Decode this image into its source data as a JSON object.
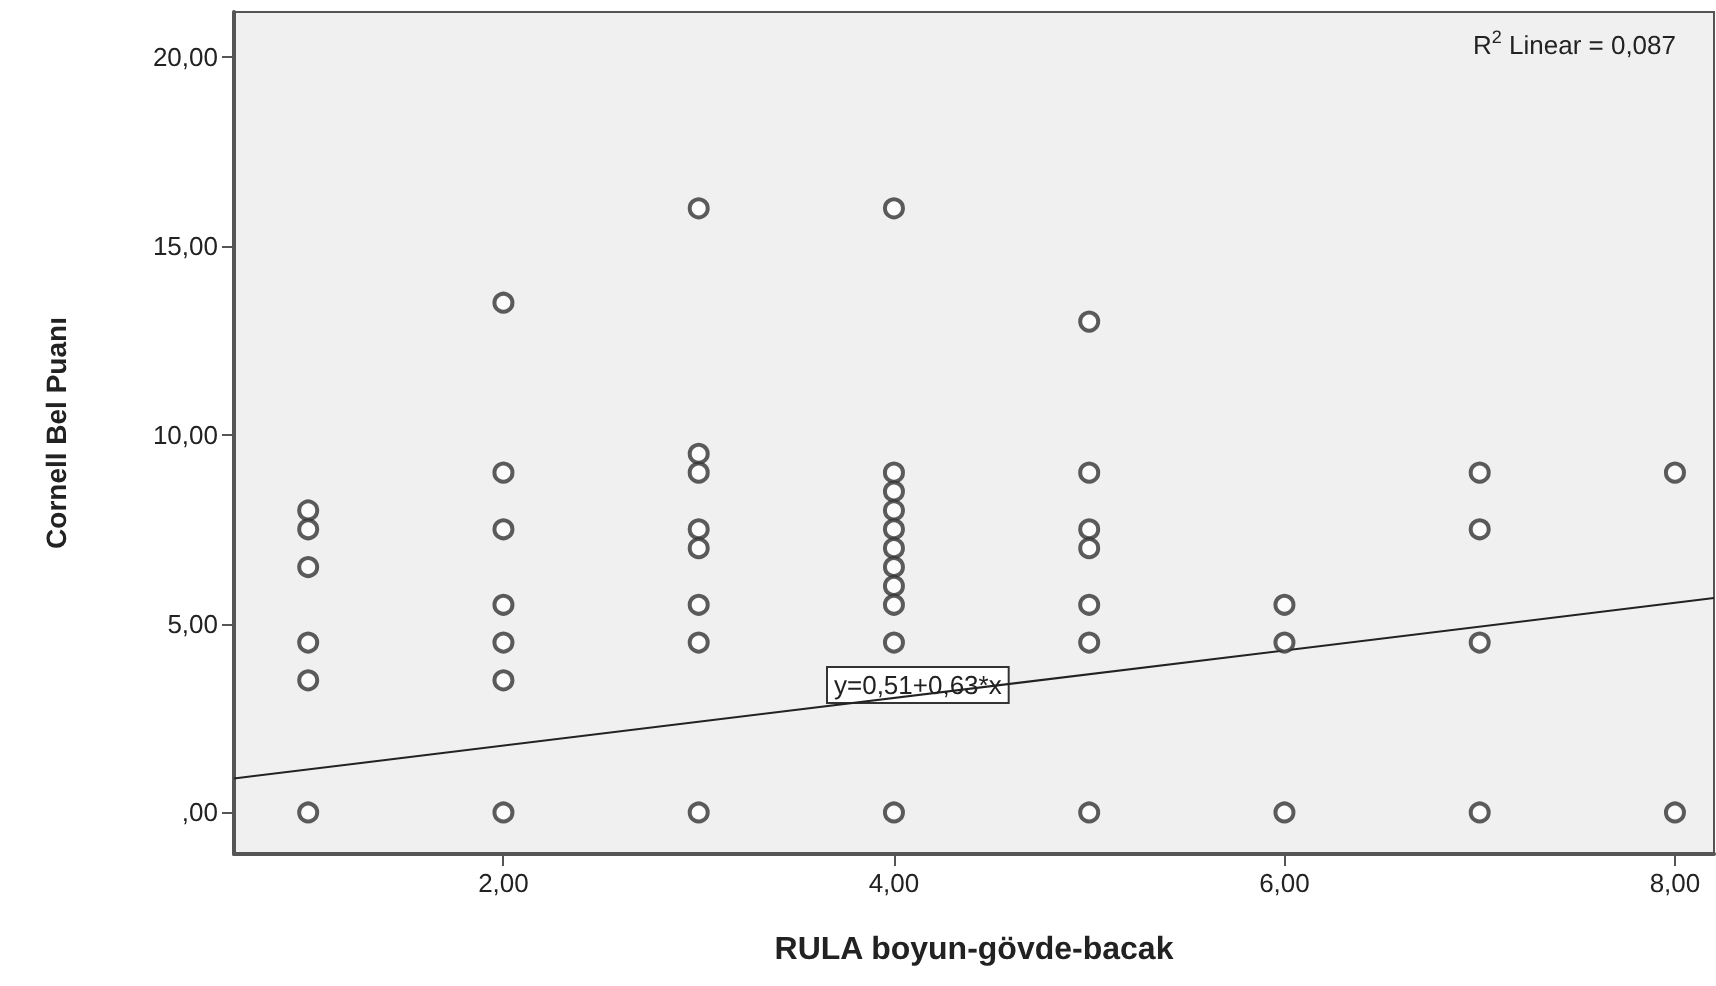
{
  "chart_data": {
    "type": "scatter",
    "xlabel": "RULA boyun-gövde-bacak",
    "ylabel": "Cornell Bel Puanı",
    "xlim": [
      0.62,
      8.2
    ],
    "ylim": [
      -1.1,
      21.2
    ],
    "xticks": [
      {
        "value": 2,
        "label": "2,00"
      },
      {
        "value": 4,
        "label": "4,00"
      },
      {
        "value": 6,
        "label": "6,00"
      },
      {
        "value": 8,
        "label": "8,00"
      }
    ],
    "yticks": [
      {
        "value": 0,
        "label": ",00"
      },
      {
        "value": 5,
        "label": "5,00"
      },
      {
        "value": 10,
        "label": "10,00"
      },
      {
        "value": 15,
        "label": "15,00"
      },
      {
        "value": 20,
        "label": "20,00"
      }
    ],
    "grid": false,
    "marker": "circle",
    "annotations": [
      "R$^{2}$ Linear = 0,087",
      "y=0,51+0,63*x"
    ],
    "series": [
      {
        "type": "scatter",
        "color": "#333333",
        "x": [
          1,
          1,
          1,
          1,
          1,
          1,
          2,
          2,
          2,
          2,
          2,
          2,
          2,
          3,
          3,
          3,
          3,
          3,
          3,
          3,
          3,
          4,
          4,
          4,
          4,
          4,
          4,
          4,
          4,
          4,
          4,
          4,
          5,
          5,
          5,
          5,
          5,
          5,
          5,
          6,
          6,
          6,
          7,
          7,
          7,
          7,
          8,
          8
        ],
        "values": [
          8,
          7.5,
          6.5,
          4.5,
          3.5,
          0,
          13.5,
          9,
          7.5,
          5.5,
          4.5,
          3.5,
          0,
          16,
          9.5,
          9,
          7.5,
          7,
          5.5,
          4.5,
          0,
          16,
          9,
          8.5,
          8,
          7.5,
          7,
          6.5,
          6,
          5.5,
          4.5,
          0,
          13,
          9,
          7.5,
          7,
          5.5,
          4.5,
          0,
          5.5,
          4.5,
          0,
          9,
          7.5,
          4.5,
          0,
          9,
          0
        ]
      },
      {
        "type": "line",
        "color": "#222222",
        "marker": "none",
        "x": [
          0.62,
          8.2
        ],
        "values": [
          0.9,
          5.68
        ]
      }
    ]
  }
}
